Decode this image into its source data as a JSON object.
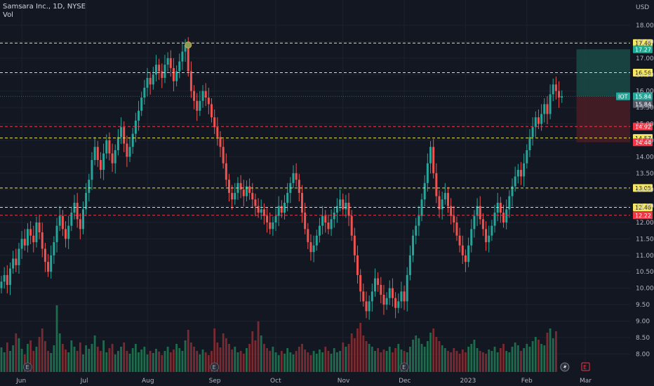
{
  "legend": {
    "symbol": "Samsara Inc., 1D, NYSE",
    "volume_label": "Vol"
  },
  "axis": {
    "currency": "USD"
  },
  "colors": {
    "up": "#26a69a",
    "down": "#ef5350",
    "bg": "#131722",
    "grid": "#1e222d",
    "yellow": "#e8e85a",
    "red_line": "#f23645",
    "profit": "#1a4a44",
    "loss": "#4a1d24"
  },
  "icons": {
    "earnings": "earnings-e-icon",
    "dividend": "lightning-icon"
  },
  "chart_data": {
    "type": "candlestick",
    "title": "Samsara Inc., 1D, NYSE",
    "ylim": [
      7.75,
      18.3
    ],
    "y_ticks": [
      18.0,
      17.5,
      17.0,
      16.5,
      16.0,
      15.5,
      15.0,
      14.5,
      14.0,
      13.5,
      13.0,
      12.5,
      12.0,
      11.5,
      11.0,
      10.5,
      10.0,
      9.5,
      9.0,
      8.5,
      8.0
    ],
    "y_tick_labels": [
      "18.00",
      "17.50",
      "17.00",
      "16.50",
      "16.00",
      "15.50",
      "15.00",
      "14.50",
      "14.00",
      "13.50",
      "13.00",
      "12.50",
      "12.00",
      "11.50",
      "11.00",
      "10.50",
      "10.00",
      "9.50",
      "9.00",
      "8.50",
      "8.00"
    ],
    "x_labels": [
      {
        "label": "Jun",
        "day": 7
      },
      {
        "label": "Jul",
        "day": 29
      },
      {
        "label": "Aug",
        "day": 50
      },
      {
        "label": "Sep",
        "day": 73
      },
      {
        "label": "Oct",
        "day": 94
      },
      {
        "label": "Nov",
        "day": 117
      },
      {
        "label": "Dec",
        "day": 138
      },
      {
        "label": "2023",
        "day": 159
      },
      {
        "label": "Feb",
        "day": 180
      },
      {
        "label": "Mar",
        "day": 200
      }
    ],
    "horizontal_lines": [
      {
        "value": 17.46,
        "label": "17.46",
        "style": "yellow"
      },
      {
        "value": 16.56,
        "label": "16.56",
        "style": "yellow"
      },
      {
        "value": 14.92,
        "label": "14.92",
        "style": "red"
      },
      {
        "value": 14.57,
        "label": "14.57",
        "style": "yellow"
      },
      {
        "value": 13.05,
        "label": "13.05",
        "style": "yellow"
      },
      {
        "value": 12.46,
        "label": "12.46",
        "style": "yellow"
      },
      {
        "value": 12.22,
        "label": "12.22",
        "style": "red"
      }
    ],
    "price_labels": [
      {
        "value": 17.27,
        "label": "17.27",
        "style": "green"
      },
      {
        "value": 15.84,
        "label": "15.84",
        "style": "teal",
        "tag": "IOT"
      },
      {
        "value": 15.84,
        "label": "15.84",
        "style": "gray"
      },
      {
        "value": 14.44,
        "label": "14.44",
        "style": "red"
      }
    ],
    "last_price": 15.84,
    "position": {
      "entry": 15.84,
      "target": 17.27,
      "stop": 14.44,
      "start_day": 197,
      "end_day": 205
    },
    "marker": {
      "day": 64,
      "value": 17.4
    },
    "earnings_days": [
      9,
      73,
      138
    ],
    "dividend_day": 193,
    "earnings_future_day": 200,
    "closes": [
      10.2,
      10.4,
      10.1,
      10.6,
      10.9,
      10.7,
      11.2,
      11.5,
      11.3,
      11.8,
      11.6,
      11.4,
      12.0,
      11.7,
      11.2,
      10.8,
      10.5,
      11.0,
      11.4,
      11.9,
      12.2,
      11.8,
      11.5,
      11.9,
      12.3,
      12.6,
      12.1,
      11.8,
      12.4,
      12.9,
      13.3,
      13.9,
      14.3,
      13.9,
      13.6,
      14.1,
      14.5,
      14.1,
      13.8,
      14.2,
      14.6,
      14.9,
      14.4,
      14.0,
      14.3,
      14.7,
      15.1,
      15.4,
      15.8,
      16.1,
      16.4,
      16.2,
      16.5,
      16.8,
      16.6,
      16.4,
      16.8,
      17.0,
      16.7,
      16.3,
      16.6,
      16.9,
      17.2,
      17.4,
      16.6,
      16.0,
      15.7,
      15.4,
      15.7,
      16.0,
      15.8,
      15.6,
      15.2,
      14.9,
      14.6,
      14.3,
      13.8,
      13.3,
      12.9,
      12.7,
      12.9,
      13.2,
      13.0,
      12.8,
      13.1,
      12.9,
      12.7,
      12.5,
      12.3,
      12.4,
      12.2,
      12.0,
      11.8,
      12.0,
      12.2,
      12.5,
      12.3,
      12.6,
      12.9,
      13.2,
      13.5,
      13.3,
      12.9,
      12.3,
      11.8,
      11.4,
      11.1,
      11.3,
      11.6,
      11.9,
      12.2,
      12.0,
      11.8,
      12.1,
      12.3,
      12.5,
      12.7,
      12.4,
      12.6,
      12.2,
      11.6,
      11.0,
      10.4,
      9.9,
      9.6,
      9.3,
      9.6,
      9.9,
      10.3,
      10.1,
      9.8,
      9.5,
      9.7,
      10.0,
      9.7,
      9.4,
      9.6,
      9.9,
      9.6,
      10.4,
      11.0,
      11.6,
      11.9,
      12.2,
      12.7,
      13.2,
      13.8,
      14.3,
      13.5,
      12.8,
      12.4,
      12.7,
      12.9,
      12.5,
      12.2,
      12.0,
      11.6,
      11.3,
      11.0,
      10.8,
      11.3,
      11.8,
      12.2,
      12.5,
      12.1,
      11.8,
      11.4,
      11.6,
      11.9,
      12.3,
      12.6,
      12.3,
      12.0,
      12.4,
      12.8,
      13.1,
      13.4,
      13.6,
      13.4,
      13.8,
      14.2,
      14.6,
      14.9,
      15.2,
      15.0,
      15.3,
      15.6,
      15.3,
      15.9,
      16.2,
      16.0,
      15.8,
      15.84
    ],
    "volumes": [
      0.35,
      0.28,
      0.42,
      0.3,
      0.38,
      0.55,
      0.48,
      0.33,
      0.25,
      0.4,
      0.45,
      0.3,
      0.36,
      0.5,
      0.62,
      0.44,
      0.3,
      0.27,
      0.38,
      0.95,
      0.55,
      0.4,
      0.32,
      0.28,
      0.45,
      0.36,
      0.3,
      0.42,
      0.25,
      0.38,
      0.33,
      0.4,
      0.52,
      0.36,
      0.3,
      0.45,
      0.28,
      0.34,
      0.4,
      0.25,
      0.3,
      0.36,
      0.42,
      0.3,
      0.26,
      0.34,
      0.4,
      0.28,
      0.32,
      0.36,
      0.25,
      0.3,
      0.27,
      0.33,
      0.29,
      0.24,
      0.3,
      0.36,
      0.28,
      0.32,
      0.4,
      0.34,
      0.3,
      0.45,
      0.6,
      0.42,
      0.36,
      0.3,
      0.25,
      0.32,
      0.28,
      0.24,
      0.3,
      0.62,
      0.42,
      0.35,
      0.55,
      0.48,
      0.4,
      0.32,
      0.36,
      0.28,
      0.3,
      0.26,
      0.34,
      0.4,
      0.58,
      0.45,
      0.72,
      0.52,
      0.4,
      0.34,
      0.3,
      0.36,
      0.28,
      0.24,
      0.3,
      0.26,
      0.34,
      0.28,
      0.25,
      0.3,
      0.36,
      0.4,
      0.32,
      0.28,
      0.24,
      0.3,
      0.26,
      0.32,
      0.28,
      0.36,
      0.3,
      0.26,
      0.34,
      0.28,
      0.3,
      0.42,
      0.36,
      0.4,
      0.55,
      0.48,
      0.62,
      0.7,
      0.52,
      0.44,
      0.4,
      0.36,
      0.3,
      0.34,
      0.28,
      0.32,
      0.3,
      0.36,
      0.28,
      0.34,
      0.4,
      0.32,
      0.3,
      0.28,
      0.36,
      0.46,
      0.52,
      0.48,
      0.4,
      0.36,
      0.44,
      0.56,
      0.62,
      0.5,
      0.44,
      0.38,
      0.34,
      0.3,
      0.28,
      0.34,
      0.3,
      0.26,
      0.32,
      0.28,
      0.36,
      0.4,
      0.46,
      0.34,
      0.3,
      0.28,
      0.26,
      0.32,
      0.3,
      0.36,
      0.28,
      0.34,
      0.4,
      0.3,
      0.28,
      0.36,
      0.42,
      0.38,
      0.3,
      0.34,
      0.4,
      0.36,
      0.44,
      0.5,
      0.46,
      0.4,
      0.38,
      0.56,
      0.62,
      0.48,
      0.58
    ]
  }
}
